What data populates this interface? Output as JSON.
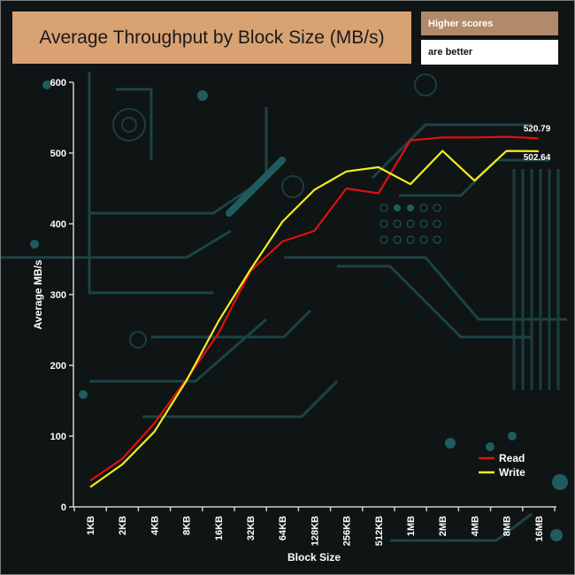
{
  "chart_data": {
    "type": "line",
    "title": "Average Throughput by Block Size (MB/s)",
    "xlabel": "Block Size",
    "ylabel": "Average MB/s",
    "categories": [
      "1KB",
      "2KB",
      "4KB",
      "8KB",
      "16KB",
      "32KB",
      "64KB",
      "128KB",
      "256KB",
      "512KB",
      "1MB",
      "2MB",
      "4MB",
      "8MB",
      "16MB"
    ],
    "ylim": [
      0,
      600
    ],
    "yticks": [
      0,
      100,
      200,
      300,
      400,
      500,
      600
    ],
    "grid": false,
    "legend_position": "bottom-right",
    "series": [
      {
        "name": "Read",
        "color": "#e01010",
        "values": [
          37,
          68,
          118,
          180,
          245,
          333,
          375,
          390,
          450,
          443,
          518,
          522,
          522,
          523,
          520.79
        ],
        "end_label": "520.79"
      },
      {
        "name": "Write",
        "color": "#f2ef1a",
        "values": [
          28,
          60,
          106,
          178,
          262,
          335,
          403,
          448,
          474,
          480,
          456,
          503,
          461,
          503,
          502.64
        ],
        "end_label": "502.64"
      }
    ]
  },
  "note": {
    "line1": "Higher scores",
    "line2": "are better"
  }
}
